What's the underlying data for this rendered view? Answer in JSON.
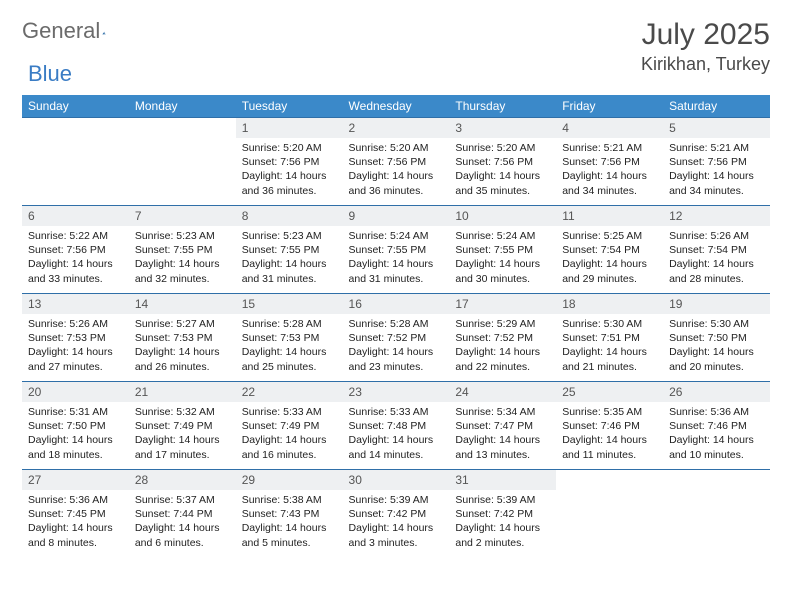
{
  "brand": {
    "word1": "General",
    "word2": "Blue"
  },
  "colors": {
    "header_bg": "#3b89c9",
    "header_text": "#ffffff",
    "row_border": "#2f6fa8",
    "daynum_bg": "#eef0f2",
    "text_muted": "#6b6b6b",
    "accent": "#3a7cc4",
    "body_text": "#222222"
  },
  "title": "July 2025",
  "location": "Kirikhan, Turkey",
  "weekdays": [
    "Sunday",
    "Monday",
    "Tuesday",
    "Wednesday",
    "Thursday",
    "Friday",
    "Saturday"
  ],
  "grid": [
    [
      null,
      null,
      {
        "n": "1",
        "sr": "5:20 AM",
        "ss": "7:56 PM",
        "dl": "14 hours and 36 minutes."
      },
      {
        "n": "2",
        "sr": "5:20 AM",
        "ss": "7:56 PM",
        "dl": "14 hours and 36 minutes."
      },
      {
        "n": "3",
        "sr": "5:20 AM",
        "ss": "7:56 PM",
        "dl": "14 hours and 35 minutes."
      },
      {
        "n": "4",
        "sr": "5:21 AM",
        "ss": "7:56 PM",
        "dl": "14 hours and 34 minutes."
      },
      {
        "n": "5",
        "sr": "5:21 AM",
        "ss": "7:56 PM",
        "dl": "14 hours and 34 minutes."
      }
    ],
    [
      {
        "n": "6",
        "sr": "5:22 AM",
        "ss": "7:56 PM",
        "dl": "14 hours and 33 minutes."
      },
      {
        "n": "7",
        "sr": "5:23 AM",
        "ss": "7:55 PM",
        "dl": "14 hours and 32 minutes."
      },
      {
        "n": "8",
        "sr": "5:23 AM",
        "ss": "7:55 PM",
        "dl": "14 hours and 31 minutes."
      },
      {
        "n": "9",
        "sr": "5:24 AM",
        "ss": "7:55 PM",
        "dl": "14 hours and 31 minutes."
      },
      {
        "n": "10",
        "sr": "5:24 AM",
        "ss": "7:55 PM",
        "dl": "14 hours and 30 minutes."
      },
      {
        "n": "11",
        "sr": "5:25 AM",
        "ss": "7:54 PM",
        "dl": "14 hours and 29 minutes."
      },
      {
        "n": "12",
        "sr": "5:26 AM",
        "ss": "7:54 PM",
        "dl": "14 hours and 28 minutes."
      }
    ],
    [
      {
        "n": "13",
        "sr": "5:26 AM",
        "ss": "7:53 PM",
        "dl": "14 hours and 27 minutes."
      },
      {
        "n": "14",
        "sr": "5:27 AM",
        "ss": "7:53 PM",
        "dl": "14 hours and 26 minutes."
      },
      {
        "n": "15",
        "sr": "5:28 AM",
        "ss": "7:53 PM",
        "dl": "14 hours and 25 minutes."
      },
      {
        "n": "16",
        "sr": "5:28 AM",
        "ss": "7:52 PM",
        "dl": "14 hours and 23 minutes."
      },
      {
        "n": "17",
        "sr": "5:29 AM",
        "ss": "7:52 PM",
        "dl": "14 hours and 22 minutes."
      },
      {
        "n": "18",
        "sr": "5:30 AM",
        "ss": "7:51 PM",
        "dl": "14 hours and 21 minutes."
      },
      {
        "n": "19",
        "sr": "5:30 AM",
        "ss": "7:50 PM",
        "dl": "14 hours and 20 minutes."
      }
    ],
    [
      {
        "n": "20",
        "sr": "5:31 AM",
        "ss": "7:50 PM",
        "dl": "14 hours and 18 minutes."
      },
      {
        "n": "21",
        "sr": "5:32 AM",
        "ss": "7:49 PM",
        "dl": "14 hours and 17 minutes."
      },
      {
        "n": "22",
        "sr": "5:33 AM",
        "ss": "7:49 PM",
        "dl": "14 hours and 16 minutes."
      },
      {
        "n": "23",
        "sr": "5:33 AM",
        "ss": "7:48 PM",
        "dl": "14 hours and 14 minutes."
      },
      {
        "n": "24",
        "sr": "5:34 AM",
        "ss": "7:47 PM",
        "dl": "14 hours and 13 minutes."
      },
      {
        "n": "25",
        "sr": "5:35 AM",
        "ss": "7:46 PM",
        "dl": "14 hours and 11 minutes."
      },
      {
        "n": "26",
        "sr": "5:36 AM",
        "ss": "7:46 PM",
        "dl": "14 hours and 10 minutes."
      }
    ],
    [
      {
        "n": "27",
        "sr": "5:36 AM",
        "ss": "7:45 PM",
        "dl": "14 hours and 8 minutes."
      },
      {
        "n": "28",
        "sr": "5:37 AM",
        "ss": "7:44 PM",
        "dl": "14 hours and 6 minutes."
      },
      {
        "n": "29",
        "sr": "5:38 AM",
        "ss": "7:43 PM",
        "dl": "14 hours and 5 minutes."
      },
      {
        "n": "30",
        "sr": "5:39 AM",
        "ss": "7:42 PM",
        "dl": "14 hours and 3 minutes."
      },
      {
        "n": "31",
        "sr": "5:39 AM",
        "ss": "7:42 PM",
        "dl": "14 hours and 2 minutes."
      },
      null,
      null
    ]
  ],
  "labels": {
    "sunrise": "Sunrise:",
    "sunset": "Sunset:",
    "daylight": "Daylight:"
  }
}
